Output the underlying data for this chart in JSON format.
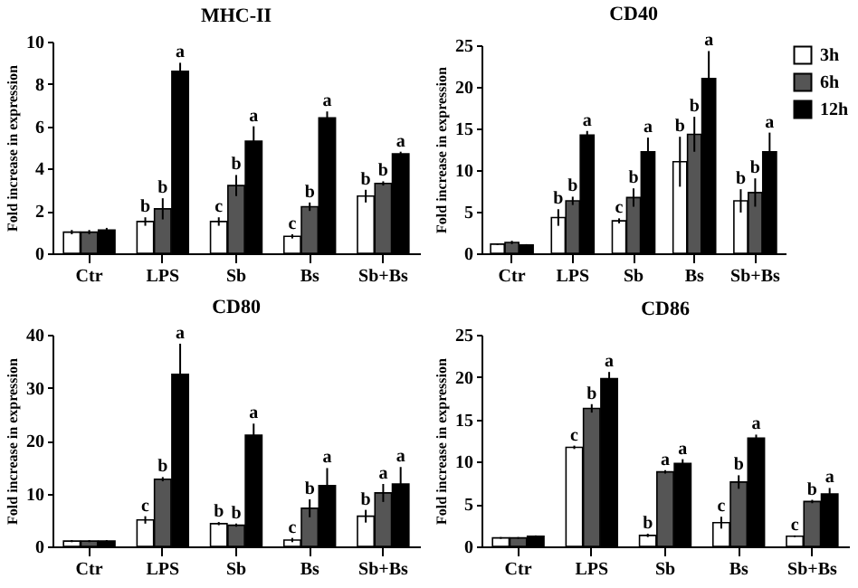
{
  "chart_data": [
    {
      "type": "bar",
      "title": "MHC-II",
      "ylabel": "Fold increase in expression",
      "categories": [
        "Ctr",
        "LPS",
        "Sb",
        "Bs",
        "Sb+Bs"
      ],
      "ylim": [
        0,
        10
      ],
      "yticks": [
        0,
        2,
        4,
        6,
        8,
        10
      ],
      "series": [
        {
          "color": "#ffffff",
          "values": [
            1.0,
            1.5,
            1.5,
            0.8,
            2.7
          ],
          "errors": [
            0.1,
            0.2,
            0.2,
            0.1,
            0.3
          ],
          "value_labels": [
            null,
            "b",
            "c",
            "c",
            "b"
          ]
        },
        {
          "color": "#555555",
          "values": [
            1.0,
            2.1,
            3.2,
            2.2,
            3.3
          ],
          "errors": [
            0.1,
            0.5,
            0.5,
            0.2,
            0.1
          ],
          "value_labels": [
            null,
            "b",
            "b",
            "b",
            "b"
          ]
        },
        {
          "color": "#000000",
          "values": [
            1.1,
            8.6,
            5.3,
            6.4,
            4.7
          ],
          "errors": [
            0.1,
            0.4,
            0.7,
            0.3,
            0.1
          ],
          "value_labels": [
            null,
            "a",
            "a",
            "a",
            "a"
          ]
        }
      ]
    },
    {
      "type": "bar",
      "title": "CD40",
      "ylabel": "Fold increase in expression",
      "categories": [
        "Ctr",
        "LPS",
        "Sb",
        "Bs",
        "Sb+Bs"
      ],
      "ylim": [
        0,
        25
      ],
      "yticks": [
        0,
        5,
        10,
        15,
        20,
        25
      ],
      "legend": "top right",
      "series": [
        {
          "name": "3h",
          "color": "#ffffff",
          "values": [
            1.1,
            4.3,
            3.9,
            11.0,
            6.3
          ],
          "errors": [
            0.1,
            1.0,
            0.3,
            3.0,
            1.4
          ],
          "value_labels": [
            null,
            "b",
            "c",
            "b",
            "b"
          ]
        },
        {
          "name": "6h",
          "color": "#555555",
          "values": [
            1.3,
            6.3,
            6.7,
            14.3,
            7.3
          ],
          "errors": [
            0.2,
            0.5,
            1.1,
            2.1,
            1.7
          ],
          "value_labels": [
            null,
            "b",
            "b",
            "b",
            "b"
          ]
        },
        {
          "name": "12h",
          "color": "#000000",
          "values": [
            1.0,
            14.2,
            12.2,
            21.0,
            12.2
          ],
          "errors": [
            0.1,
            0.5,
            1.7,
            3.3,
            2.3
          ],
          "value_labels": [
            null,
            "a",
            "a",
            "a",
            "a"
          ]
        }
      ]
    },
    {
      "type": "bar",
      "title": "CD80",
      "ylabel": "Fold increase in expression",
      "categories": [
        "Ctr",
        "LPS",
        "Sb",
        "Bs",
        "Sb+Bs"
      ],
      "ylim": [
        0,
        40
      ],
      "yticks": [
        0,
        10,
        20,
        30,
        40
      ],
      "series": [
        {
          "color": "#ffffff",
          "values": [
            1.0,
            5.0,
            4.3,
            1.2,
            5.7
          ],
          "errors": [
            0.2,
            0.7,
            0.3,
            0.4,
            1.2
          ],
          "value_labels": [
            null,
            "c",
            "b",
            "c",
            "b"
          ]
        },
        {
          "color": "#555555",
          "values": [
            1.0,
            12.7,
            4.0,
            7.2,
            10.1
          ],
          "errors": [
            0.2,
            0.4,
            0.3,
            1.7,
            1.7
          ],
          "value_labels": [
            null,
            "b",
            "b",
            "b",
            "a"
          ]
        },
        {
          "color": "#000000",
          "values": [
            1.0,
            32.5,
            21.0,
            11.5,
            11.8
          ],
          "errors": [
            0.2,
            5.8,
            2.2,
            3.3,
            3.2
          ],
          "value_labels": [
            null,
            "a",
            "a",
            "a",
            "a"
          ]
        }
      ]
    },
    {
      "type": "bar",
      "title": "CD86",
      "ylabel": "Fold increase in expression",
      "categories": [
        "Ctr",
        "LPS",
        "Sb",
        "Bs",
        "Sb+Bs"
      ],
      "ylim": [
        0,
        25
      ],
      "yticks": [
        0,
        5,
        10,
        15,
        20,
        25
      ],
      "series": [
        {
          "color": "#ffffff",
          "values": [
            1.0,
            11.7,
            1.3,
            2.8,
            1.2
          ],
          "errors": [
            0.1,
            0.2,
            0.2,
            0.7,
            0.1
          ],
          "value_labels": [
            null,
            "c",
            "b",
            "c",
            "c"
          ]
        },
        {
          "color": "#555555",
          "values": [
            1.0,
            16.3,
            8.8,
            7.6,
            5.3
          ],
          "errors": [
            0.1,
            0.5,
            0.2,
            0.8,
            0.2
          ],
          "value_labels": [
            null,
            "b",
            "a",
            "b",
            "b"
          ]
        },
        {
          "color": "#000000",
          "values": [
            1.2,
            19.8,
            9.8,
            12.8,
            6.2
          ],
          "errors": [
            0.1,
            0.8,
            0.5,
            0.4,
            0.7
          ],
          "value_labels": [
            null,
            "a",
            "a",
            "a",
            "a"
          ]
        }
      ]
    }
  ]
}
